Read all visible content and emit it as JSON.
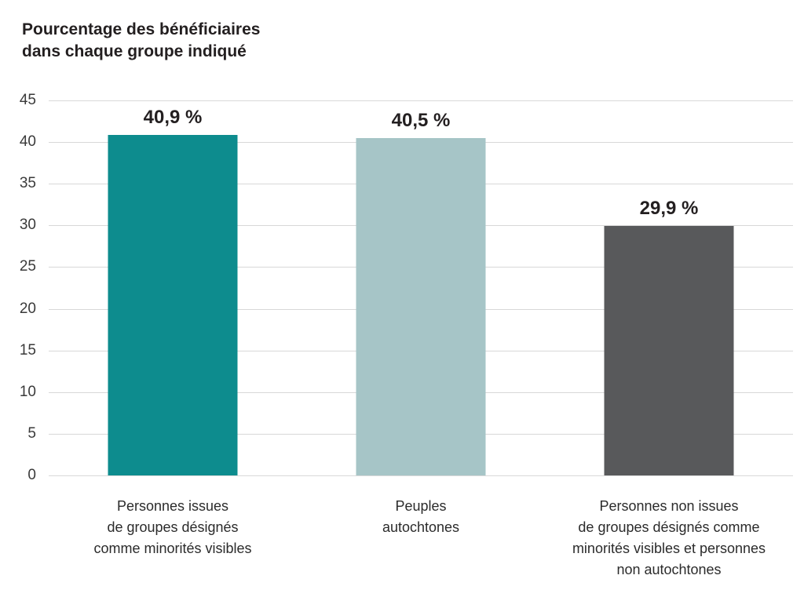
{
  "title": {
    "line1": "Pourcentage des bénéficiaires",
    "line2": "dans chaque groupe indiqué"
  },
  "chart_data": {
    "type": "bar",
    "title": "Pourcentage des bénéficiaires dans chaque groupe indiqué",
    "categories": [
      [
        "Personnes issues",
        "de groupes désignés",
        "comme minorités visibles"
      ],
      [
        "Peuples",
        "autochtones"
      ],
      [
        "Personnes non issues",
        "de groupes désignés comme",
        "minorités visibles et personnes",
        "non autochtones"
      ]
    ],
    "values": [
      40.9,
      40.5,
      29.9
    ],
    "value_labels": [
      "40,9 %",
      "40,5 %",
      "29,9 %"
    ],
    "bar_colors": [
      "#0d8c8e",
      "#a6c5c7",
      "#58595b"
    ],
    "xlabel": "",
    "ylabel": "",
    "ylim": [
      0,
      45
    ],
    "yticks": [
      0,
      5,
      10,
      15,
      20,
      25,
      30,
      35,
      40,
      45
    ],
    "grid": "horizontal",
    "legend": "none",
    "colors": {
      "gridline": "#d8d8d8",
      "text": "#231f20",
      "tick_text": "#3a3a3a"
    }
  }
}
